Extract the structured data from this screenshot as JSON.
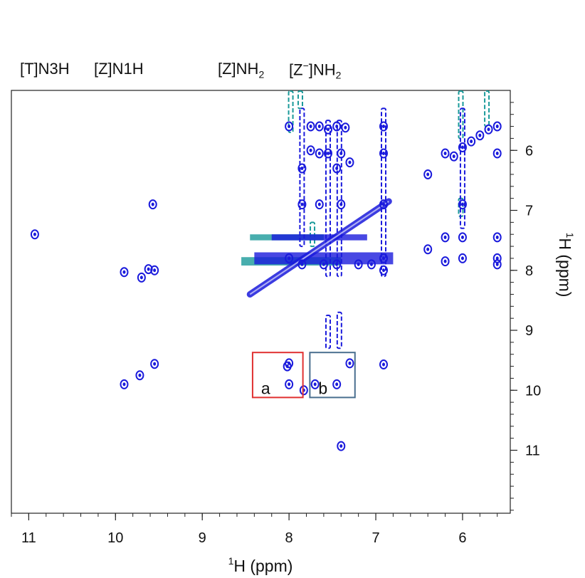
{
  "chart_data": {
    "type": "heatmap",
    "subtype": "2D NMR contour spectrum (1H-1H NOESY)",
    "x_axis": {
      "label_sup": "1",
      "label": "H (ppm)",
      "range": [
        11.2,
        5.45
      ],
      "reversed": true,
      "major_ticks": [
        11,
        10,
        9,
        8,
        7,
        6
      ],
      "tick_labels": [
        "11",
        "10",
        "9",
        "8",
        "7",
        "6"
      ],
      "minor_step": 0.2
    },
    "y_axis": {
      "label_sup": "1",
      "label": "H (ppm)",
      "range": [
        5.0,
        12.05
      ],
      "reversed": true,
      "position": "right",
      "major_ticks": [
        6,
        7,
        8,
        9,
        10,
        11
      ],
      "tick_labels": [
        "6",
        "7",
        "8",
        "9",
        "10",
        "11"
      ],
      "minor_step": 0.2
    },
    "top_annotations": [
      {
        "text": "[T]N3H"
      },
      {
        "text": "[Z]N1H"
      },
      {
        "text": "[Z]NH",
        "sub": "2"
      },
      {
        "text": "[Z",
        "sup": "−",
        "text2": "]NH",
        "sub": "2"
      }
    ],
    "region_boxes": [
      {
        "label": "a",
        "x_range": [
          8.42,
          7.84
        ],
        "y_range": [
          9.37,
          10.12
        ],
        "color": "#e03030"
      },
      {
        "label": "b",
        "x_range": [
          7.76,
          7.24
        ],
        "y_range": [
          9.37,
          10.12
        ],
        "color": "#4a6f8f"
      }
    ],
    "contour_colors": {
      "positive": "#1a1adc",
      "negative": "#1a9a9a"
    },
    "diagonal": {
      "from": [
        8.45,
        8.4
      ],
      "to": [
        6.85,
        6.85
      ]
    },
    "positive_peaks": [
      [
        10.93,
        7.4
      ],
      [
        9.57,
        6.9
      ],
      [
        9.9,
        8.03
      ],
      [
        9.7,
        8.12
      ],
      [
        9.55,
        8.0
      ],
      [
        9.62,
        7.98
      ],
      [
        9.55,
        9.56
      ],
      [
        9.72,
        9.75
      ],
      [
        9.9,
        9.9
      ],
      [
        8.0,
        9.55
      ],
      [
        8.02,
        9.6
      ],
      [
        8.0,
        9.9
      ],
      [
        7.83,
        10.0
      ],
      [
        7.45,
        9.9
      ],
      [
        7.7,
        9.9
      ],
      [
        7.3,
        9.55
      ],
      [
        6.91,
        9.57
      ],
      [
        7.4,
        10.93
      ],
      [
        7.45,
        6.3
      ],
      [
        7.3,
        6.2
      ],
      [
        7.85,
        6.3
      ],
      [
        7.75,
        5.6
      ],
      [
        7.65,
        5.6
      ],
      [
        7.55,
        5.65
      ],
      [
        7.45,
        5.6
      ],
      [
        7.35,
        5.62
      ],
      [
        8.0,
        5.6
      ],
      [
        7.75,
        6.0
      ],
      [
        7.65,
        6.05
      ],
      [
        7.55,
        6.05
      ],
      [
        7.4,
        6.05
      ],
      [
        6.91,
        5.6
      ],
      [
        6.91,
        6.05
      ],
      [
        7.85,
        6.9
      ],
      [
        7.65,
        6.9
      ],
      [
        7.4,
        6.9
      ],
      [
        6.91,
        6.9
      ],
      [
        6.0,
        6.9
      ],
      [
        6.0,
        7.45
      ],
      [
        6.0,
        7.8
      ],
      [
        6.2,
        7.45
      ],
      [
        6.2,
        7.85
      ],
      [
        6.4,
        7.65
      ],
      [
        5.6,
        7.8
      ],
      [
        5.6,
        7.9
      ],
      [
        5.6,
        7.45
      ],
      [
        5.6,
        5.6
      ],
      [
        5.7,
        5.65
      ],
      [
        5.8,
        5.75
      ],
      [
        5.9,
        5.85
      ],
      [
        6.0,
        5.95
      ],
      [
        6.1,
        6.1
      ],
      [
        6.4,
        6.4
      ],
      [
        5.6,
        6.05
      ],
      [
        6.2,
        6.05
      ],
      [
        8.0,
        7.8
      ],
      [
        7.85,
        7.9
      ],
      [
        7.6,
        7.9
      ],
      [
        7.45,
        7.9
      ],
      [
        7.2,
        7.9
      ],
      [
        7.05,
        7.9
      ],
      [
        6.91,
        7.8
      ],
      [
        6.91,
        8.0
      ]
    ],
    "positive_streaks": [
      {
        "x": 7.55,
        "y_range": [
          5.5,
          8.1
        ]
      },
      {
        "x": 7.42,
        "y_range": [
          5.5,
          8.1
        ]
      },
      {
        "x": 7.55,
        "y_range": [
          8.75,
          9.3
        ]
      },
      {
        "x": 7.42,
        "y_range": [
          8.7,
          9.3
        ]
      },
      {
        "x": 7.85,
        "y_range": [
          5.3,
          7.6
        ]
      },
      {
        "x": 6.91,
        "y_range": [
          5.3,
          8.1
        ]
      },
      {
        "x": 6.0,
        "y_range": [
          5.3,
          7.3
        ]
      },
      {
        "x": 8.1,
        "y_range": [
          7.7,
          7.9
        ],
        "horizontal_x_range": [
          8.4,
          6.8
        ]
      },
      {
        "x": 8.0,
        "y_range": [
          7.4,
          7.5
        ],
        "horizontal_x_range": [
          8.2,
          7.1
        ]
      }
    ],
    "negative_streaks": [
      {
        "x": 8.05,
        "y_range": [
          7.78,
          7.92
        ],
        "horizontal_x_range": [
          8.55,
          7.4
        ]
      },
      {
        "x": 8.15,
        "y_range": [
          7.4,
          7.5
        ],
        "horizontal_x_range": [
          8.45,
          7.6
        ]
      },
      {
        "x": 7.98,
        "y_range": [
          5.0,
          5.7
        ]
      },
      {
        "x": 7.87,
        "y_range": [
          5.0,
          5.3
        ]
      },
      {
        "x": 6.02,
        "y_range": [
          5.0,
          5.8
        ]
      },
      {
        "x": 6.02,
        "y_range": [
          6.8,
          7.1
        ]
      },
      {
        "x": 5.72,
        "y_range": [
          5.0,
          5.6
        ]
      },
      {
        "x": 7.73,
        "y_range": [
          7.2,
          7.6
        ]
      }
    ]
  }
}
